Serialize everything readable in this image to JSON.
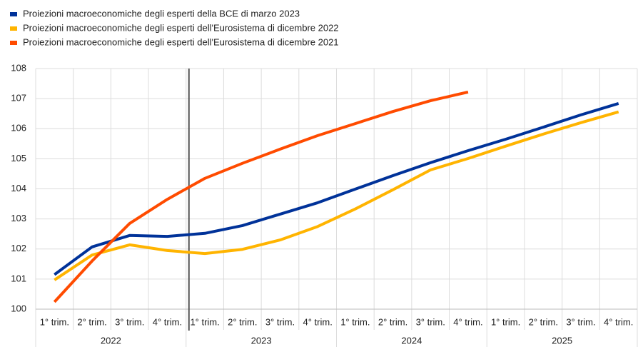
{
  "chart_data": {
    "type": "line",
    "categories": [
      "1° trim.",
      "2° trim.",
      "3° trim.",
      "4° trim.",
      "1° trim.",
      "2° trim.",
      "3° trim.",
      "4° trim.",
      "1° trim.",
      "2° trim.",
      "3° trim.",
      "4° trim.",
      "1° trim.",
      "2° trim.",
      "3° trim.",
      "4° trim."
    ],
    "years": [
      "2022",
      "2023",
      "2024",
      "2025"
    ],
    "series": [
      {
        "name": "Proiezioni macroeconomiche degli esperti della BCE di marzo 2023",
        "color": "#003299",
        "values": [
          101.15,
          102.07,
          102.45,
          102.42,
          102.52,
          102.78,
          103.16,
          103.54,
          103.99,
          104.44,
          104.87,
          105.27,
          105.65,
          106.05,
          106.46,
          106.84
        ]
      },
      {
        "name": "Proiezioni macroeconomiche degli esperti dell'Eurosistema di dicembre 2022",
        "color": "#ffb400",
        "values": [
          100.97,
          101.8,
          102.14,
          101.95,
          101.85,
          101.99,
          102.3,
          102.75,
          103.33,
          103.97,
          104.63,
          105.01,
          105.42,
          105.82,
          106.2,
          106.56
        ]
      },
      {
        "name": "Proiezioni macroeconomiche degli esperti dell'Eurosistema di dicembre 2021",
        "color": "#ff4b00",
        "values": [
          100.24,
          101.6,
          102.85,
          103.65,
          104.35,
          104.85,
          105.32,
          105.77,
          106.17,
          106.57,
          106.93,
          107.22,
          null,
          null,
          null,
          null
        ]
      }
    ],
    "ylim": [
      100,
      108
    ],
    "yticks": [
      100,
      101,
      102,
      103,
      104,
      105,
      106,
      107,
      108
    ],
    "grid": true
  }
}
